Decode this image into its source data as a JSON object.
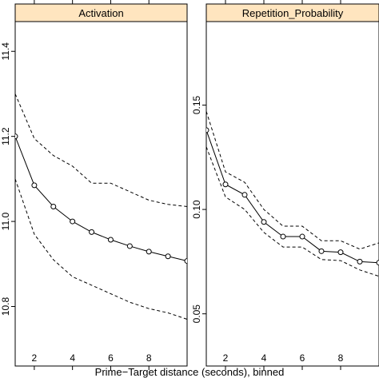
{
  "chart_data": {
    "type": "line",
    "xlabel": "Prime−Target distance (seconds), binned",
    "x_ticks": [
      2,
      4,
      6,
      8
    ],
    "xlim": [
      1,
      10
    ],
    "panels": [
      {
        "strip": "Activation",
        "ylim": [
          10.66,
          11.47
        ],
        "y_ticks": [
          "10.8",
          "11.0",
          "11.2",
          "11.4"
        ],
        "y_tick_values": [
          10.8,
          11.0,
          11.2,
          11.4
        ],
        "x": [
          1,
          2,
          3,
          4,
          5,
          6,
          7,
          8,
          9,
          10
        ],
        "series": [
          {
            "role": "estimate",
            "style": "solid-with-circles",
            "values": [
              11.2,
              11.085,
              11.035,
              11.0,
              10.975,
              10.957,
              10.942,
              10.929,
              10.918,
              10.907
            ]
          },
          {
            "role": "upper",
            "style": "dashed",
            "values": [
              11.3,
              11.195,
              11.155,
              11.13,
              11.09,
              11.09,
              11.07,
              11.05,
              11.04,
              11.035
            ]
          },
          {
            "role": "lower",
            "style": "dashed",
            "values": [
              11.1,
              10.97,
              10.91,
              10.87,
              10.85,
              10.83,
              10.81,
              10.795,
              10.785,
              10.77
            ]
          }
        ]
      },
      {
        "strip": "Repetition_Probability",
        "ylim": [
          0.025,
          0.19
        ],
        "y_ticks": [
          "0.05",
          "0.10",
          "0.15"
        ],
        "y_tick_values": [
          0.05,
          0.1,
          0.15
        ],
        "x": [
          1,
          2,
          3,
          4,
          5,
          6,
          7,
          8,
          9,
          10
        ],
        "series": [
          {
            "role": "estimate",
            "style": "solid-with-circles",
            "values": [
              0.138,
              0.112,
              0.107,
              0.094,
              0.087,
              0.087,
              0.08,
              0.0795,
              0.075,
              0.0745
            ]
          },
          {
            "role": "upper",
            "style": "dashed",
            "values": [
              0.147,
              0.118,
              0.113,
              0.1,
              0.092,
              0.092,
              0.085,
              0.085,
              0.081,
              0.084
            ]
          },
          {
            "role": "lower",
            "style": "dashed",
            "values": [
              0.13,
              0.106,
              0.1,
              0.089,
              0.082,
              0.082,
              0.076,
              0.0755,
              0.071,
              0.068
            ]
          }
        ]
      }
    ]
  }
}
